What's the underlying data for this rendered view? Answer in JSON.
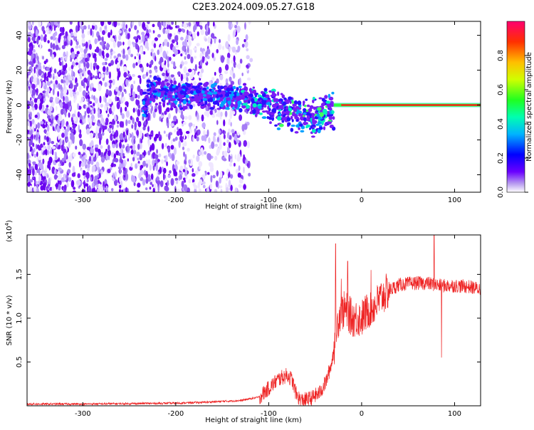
{
  "title": "C2E3.2024.009.05.27.G18",
  "colors": {
    "snr_line": "#ee2222",
    "axis": "#000000",
    "background": "#ffffff"
  },
  "chart_data": [
    {
      "type": "heatmap",
      "xlabel": "Height of straight line (km)",
      "ylabel": "Frequency (Hz)",
      "xlim": [
        -360,
        128
      ],
      "ylim": [
        -50,
        48
      ],
      "xticks": [
        -300,
        -200,
        -100,
        0,
        100
      ],
      "yticks": [
        -40,
        -20,
        0,
        20,
        40
      ],
      "colorbar": {
        "label": "Normalized spectral amplitude",
        "range": [
          0,
          1
        ],
        "ticks": [
          0.0,
          0.2,
          0.4,
          0.6,
          0.8
        ],
        "tick_labels": [
          "0.0",
          "0.2",
          "0.4",
          "0.6",
          "0.8"
        ],
        "colormap": "rainbow"
      },
      "ridge": {
        "comment_free": true,
        "points": [
          [
            -230,
            8
          ],
          [
            -200,
            6
          ],
          [
            -160,
            5
          ],
          [
            -130,
            4
          ],
          [
            -110,
            2
          ],
          [
            -90,
            -2
          ],
          [
            -70,
            -5
          ],
          [
            -50,
            -7
          ],
          [
            -35,
            -4
          ],
          [
            -25,
            -1
          ],
          [
            -10,
            0
          ],
          [
            0,
            0.5
          ],
          [
            50,
            0
          ],
          [
            128,
            0
          ]
        ]
      },
      "scatter_region": {
        "x": [
          -360,
          -120
        ],
        "y": [
          -50,
          48
        ]
      },
      "grid": false
    },
    {
      "type": "line",
      "xlabel": "Height of straight line (km)",
      "ylabel": "SNR (10 * v/v)",
      "y_multiplier": "(x10",
      "y_multiplier_exp": "4",
      "y_multiplier_close": ")",
      "xlim": [
        -360,
        128
      ],
      "ylim": [
        0,
        1.95
      ],
      "xticks": [
        -300,
        -200,
        -100,
        0,
        100
      ],
      "yticks": [
        0.5,
        1.0,
        1.5
      ],
      "ytick_labels": [
        "0.5",
        "1.0",
        "1.5"
      ],
      "series": [
        {
          "color": "#ee2222",
          "points": [
            [
              -360,
              0.02
            ],
            [
              -300,
              0.02
            ],
            [
              -250,
              0.025
            ],
            [
              -200,
              0.03
            ],
            [
              -170,
              0.04
            ],
            [
              -150,
              0.05
            ],
            [
              -130,
              0.06
            ],
            [
              -110,
              0.1
            ],
            [
              -100,
              0.2
            ],
            [
              -90,
              0.3
            ],
            [
              -80,
              0.35
            ],
            [
              -75,
              0.3
            ],
            [
              -70,
              0.12
            ],
            [
              -65,
              0.06
            ],
            [
              -55,
              0.08
            ],
            [
              -45,
              0.15
            ],
            [
              -38,
              0.28
            ],
            [
              -32,
              0.5
            ],
            [
              -28,
              0.8
            ],
            [
              -24,
              1.05
            ],
            [
              -18,
              1.1
            ],
            [
              -10,
              1.0
            ],
            [
              0,
              1.0
            ],
            [
              8,
              1.1
            ],
            [
              15,
              1.15
            ],
            [
              22,
              1.25
            ],
            [
              30,
              1.32
            ],
            [
              40,
              1.38
            ],
            [
              55,
              1.4
            ],
            [
              70,
              1.4
            ],
            [
              85,
              1.37
            ],
            [
              100,
              1.37
            ],
            [
              115,
              1.36
            ],
            [
              128,
              1.33
            ]
          ],
          "spikes": [
            [
              -28,
              1.85
            ],
            [
              -22,
              1.45
            ],
            [
              -15,
              1.65
            ],
            [
              10,
              1.55
            ],
            [
              78,
              1.95
            ],
            [
              86,
              0.55
            ],
            [
              96,
              1.35
            ]
          ]
        }
      ],
      "grid": false
    }
  ]
}
